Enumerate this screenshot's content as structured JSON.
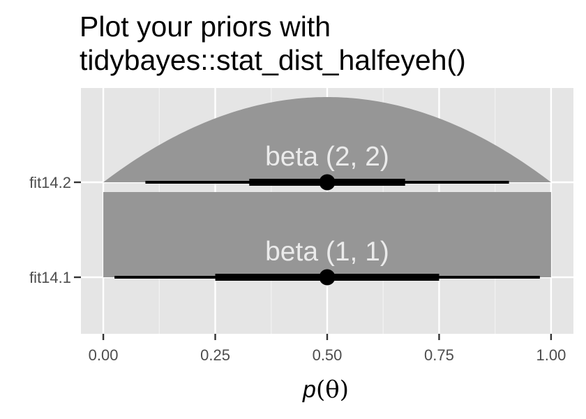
{
  "chart_data": {
    "type": "halfeye",
    "title": "Plot your priors with tidybayes::stat_dist_halfeyeh()",
    "title_lines": [
      "Plot your priors with",
      "tidybayes::stat_dist_halfeyeh()"
    ],
    "xlabel_prefix": "p",
    "xlabel_symbol": "(θ)",
    "ylabel": "",
    "xlim": [
      -0.05,
      1.05
    ],
    "x_ticks": [
      0,
      0.25,
      0.5,
      0.75,
      1
    ],
    "x_tick_labels": [
      "0.00",
      "0.25",
      "0.50",
      "0.75",
      "1.00"
    ],
    "grid": true,
    "background": "#e5e5e5",
    "density_fill": "#969696",
    "interval_color": "#000000",
    "label_color": "#ebebeb",
    "series": [
      {
        "name": "fit14.2",
        "label": "beta (2, 2)",
        "distribution": "beta",
        "alpha": 2,
        "beta": 2,
        "point": 0.5,
        "interval_66": [
          0.326,
          0.674
        ],
        "interval_95": [
          0.094,
          0.906
        ]
      },
      {
        "name": "fit14.1",
        "label": "beta (1, 1)",
        "distribution": "beta",
        "alpha": 1,
        "beta": 1,
        "point": 0.5,
        "interval_66": [
          0.25,
          0.75
        ],
        "interval_95": [
          0.025,
          0.975
        ]
      }
    ]
  }
}
